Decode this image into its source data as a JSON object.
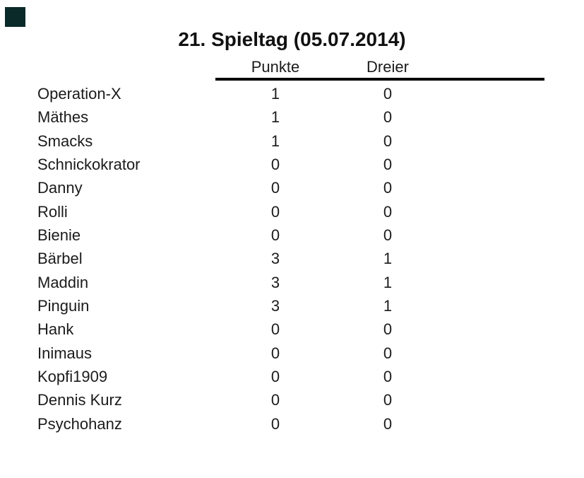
{
  "page": {
    "background_color": "#ffffff",
    "text_color": "#1b1b1b",
    "rule_color": "#000000",
    "corner_square_color": "#0a2929"
  },
  "title": "21. Spieltag (05.07.2014)",
  "table": {
    "columns": [
      "Punkte",
      "Dreier"
    ],
    "rows": [
      {
        "name": "Operation-X",
        "punkte": "1",
        "dreier": "0"
      },
      {
        "name": "Mäthes",
        "punkte": "1",
        "dreier": "0"
      },
      {
        "name": "Smacks",
        "punkte": "1",
        "dreier": "0"
      },
      {
        "name": "Schnickokrator",
        "punkte": "0",
        "dreier": "0"
      },
      {
        "name": "Danny",
        "punkte": "0",
        "dreier": "0"
      },
      {
        "name": "Rolli",
        "punkte": "0",
        "dreier": "0"
      },
      {
        "name": "Bienie",
        "punkte": "0",
        "dreier": "0"
      },
      {
        "name": "Bärbel",
        "punkte": "3",
        "dreier": "1"
      },
      {
        "name": "Maddin",
        "punkte": "3",
        "dreier": "1"
      },
      {
        "name": "Pinguin",
        "punkte": "3",
        "dreier": "1"
      },
      {
        "name": "Hank",
        "punkte": "0",
        "dreier": "0"
      },
      {
        "name": "Inimaus",
        "punkte": "0",
        "dreier": "0"
      },
      {
        "name": "Kopfi1909",
        "punkte": "0",
        "dreier": "0"
      },
      {
        "name": "Dennis Kurz",
        "punkte": "0",
        "dreier": "0"
      },
      {
        "name": "Psychohanz",
        "punkte": "0",
        "dreier": "0"
      }
    ]
  }
}
